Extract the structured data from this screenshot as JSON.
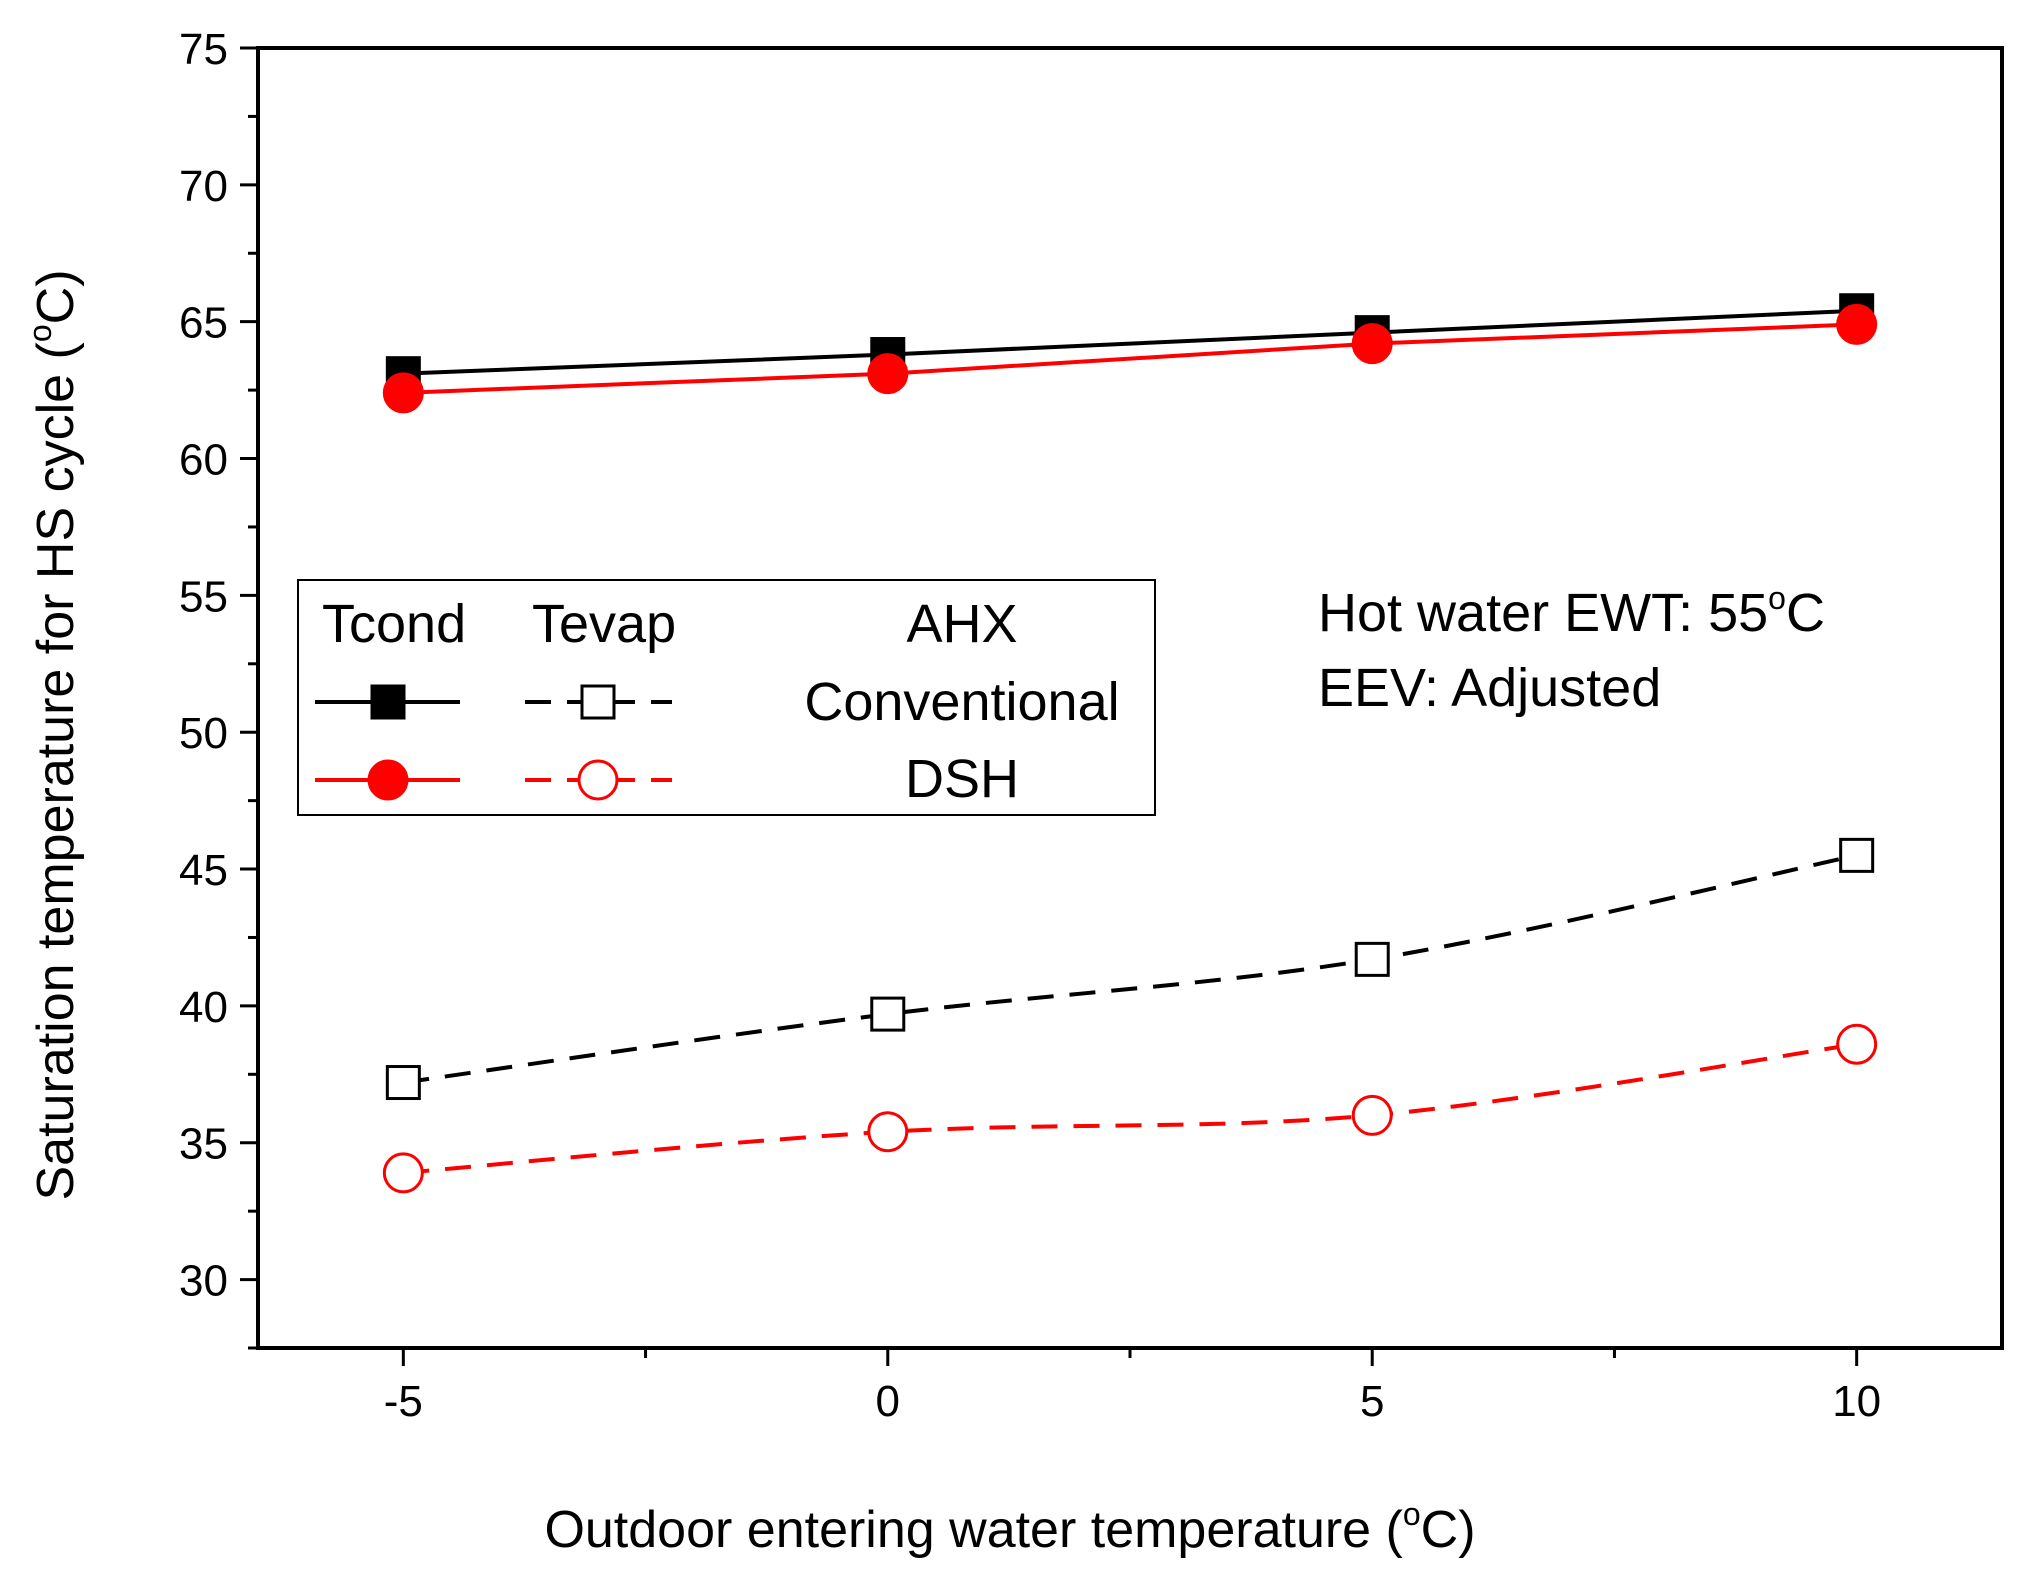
{
  "chart_data": {
    "type": "line",
    "xlabel": "Outdoor entering water temperature (°C)",
    "xlabel_parts": {
      "pre": "Outdoor entering water temperature (",
      "sup": "o",
      "post": "C)"
    },
    "ylabel": "Saturation temperature for HS cycle (°C)",
    "ylabel_parts": {
      "pre": "Saturation temperature for HS cycle (",
      "sup": "o",
      "post": "C)"
    },
    "xlim": [
      -6.5,
      11.5
    ],
    "ylim": [
      27.5,
      75
    ],
    "x_ticks": [
      -5,
      0,
      5,
      10
    ],
    "x_tick_labels": [
      "-5",
      "0",
      "5",
      "10"
    ],
    "x_minor_ticks": [
      -2.5,
      2.5,
      7.5
    ],
    "y_ticks": [
      30,
      35,
      40,
      45,
      50,
      55,
      60,
      65,
      70,
      75
    ],
    "y_tick_labels": [
      "30",
      "35",
      "40",
      "45",
      "50",
      "55",
      "60",
      "65",
      "70",
      "75"
    ],
    "y_minor_ticks": [
      27.5,
      32.5,
      37.5,
      42.5,
      47.5,
      52.5,
      57.5,
      62.5,
      67.5,
      72.5
    ],
    "grid": false,
    "x": [
      -5,
      0,
      5,
      10
    ],
    "series": [
      {
        "group": "Conventional",
        "variable": "Tcond",
        "values": [
          63.1,
          63.8,
          64.6,
          65.4
        ],
        "color": "#000000",
        "marker": "square",
        "filled": true,
        "dashed": false
      },
      {
        "group": "DSH",
        "variable": "Tcond",
        "values": [
          62.4,
          63.1,
          64.2,
          64.9
        ],
        "color": "#ff0000",
        "marker": "circle",
        "filled": true,
        "dashed": false
      },
      {
        "group": "Conventional",
        "variable": "Tevap",
        "values": [
          37.2,
          39.7,
          41.7,
          45.5
        ],
        "color": "#000000",
        "marker": "square",
        "filled": false,
        "dashed": true
      },
      {
        "group": "DSH",
        "variable": "Tevap",
        "values": [
          33.9,
          35.4,
          36.0,
          38.6
        ],
        "color": "#ff0000",
        "marker": "circle",
        "filled": false,
        "dashed": true
      }
    ],
    "legend": {
      "placement": "center-left",
      "col_headers": [
        "Tcond",
        "Tevap",
        "AHX"
      ],
      "rows": [
        {
          "label": "Conventional",
          "color": "#000000",
          "marker": "square"
        },
        {
          "label": "DSH",
          "color": "#ff0000",
          "marker": "circle"
        }
      ]
    },
    "annotation": {
      "line1": {
        "pre": "Hot water EWT: 55",
        "sup": "o",
        "post": "C"
      },
      "line2": "EEV: Adjusted"
    }
  }
}
